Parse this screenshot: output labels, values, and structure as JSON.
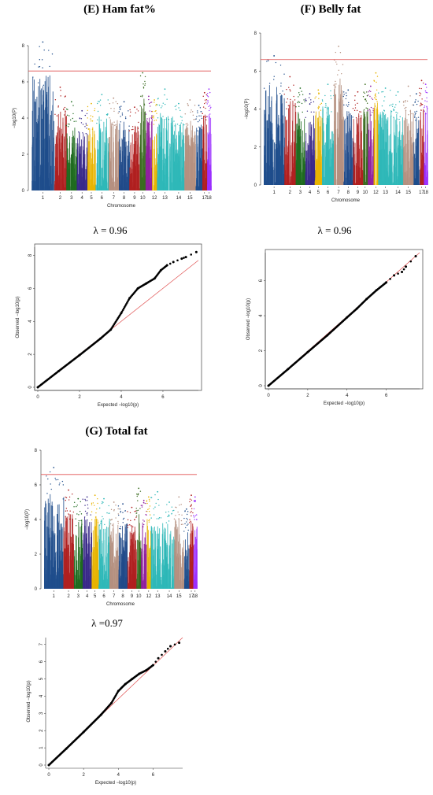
{
  "titles": {
    "E": "(E) Ham fat%",
    "F": "(F) Belly fat",
    "G": "(G) Total fat"
  },
  "lambdas": {
    "E": "λ = 0.96",
    "F": "λ = 0.96",
    "G": "λ =0.97"
  },
  "chart_data": [
    {
      "id": "E-manhattan",
      "type": "scatter",
      "subtype": "manhattan",
      "title": "(E) Ham fat%",
      "xlabel": "Chromosome",
      "ylabel": "−log10(P)",
      "ylim": [
        0,
        8
      ],
      "yticks": [
        0,
        2,
        4,
        6,
        8
      ],
      "chromosomes": [
        "1",
        "2",
        "3",
        "4",
        "5",
        "6",
        "7",
        "8",
        "9",
        "10",
        "11",
        "12",
        "13",
        "14",
        "15",
        "16",
        "17",
        "18"
      ],
      "xtick_labels": [
        "1",
        "2",
        "3",
        "4",
        "5",
        "6",
        "7",
        "8",
        "9",
        "10",
        "12",
        "13",
        "14",
        "15",
        "17",
        "18"
      ],
      "significance_threshold": 6.6,
      "chromosome_colors": [
        "#1f4e8c",
        "#b02020",
        "#1f6b1f",
        "#3a2a8a",
        "#e8b400",
        "#2fb8b8",
        "#b59080",
        "#204a8a",
        "#b02020",
        "#3a6b1f",
        "#9020a0",
        "#e8b400",
        "#2fb8b8",
        "#2fb8b8",
        "#b59080",
        "#1f4e8c",
        "#b02020",
        "#9b30ff"
      ],
      "peak_values": [
        8.2,
        5.7,
        4.9,
        4.4,
        4.8,
        5.3,
        5.1,
        4.9,
        4.6,
        6.5,
        5.2,
        5.0,
        5.6,
        4.8,
        5.0,
        4.7,
        5.4,
        5.6
      ],
      "grid": false
    },
    {
      "id": "F-manhattan",
      "type": "scatter",
      "subtype": "manhattan",
      "title": "(F) Belly fat",
      "xlabel": "Chromosome",
      "ylabel": "−log10(P)",
      "ylim": [
        0,
        8
      ],
      "yticks": [
        0,
        2,
        4,
        6,
        8
      ],
      "chromosomes": [
        "1",
        "2",
        "3",
        "4",
        "5",
        "6",
        "7",
        "8",
        "9",
        "10",
        "11",
        "12",
        "13",
        "14",
        "15",
        "16",
        "17",
        "18"
      ],
      "xtick_labels": [
        "1",
        "2",
        "3",
        "4",
        "5",
        "6",
        "7",
        "8",
        "9",
        "10",
        "12",
        "13",
        "14",
        "15",
        "17",
        "18"
      ],
      "significance_threshold": 6.6,
      "chromosome_colors": [
        "#1f4e8c",
        "#b02020",
        "#1f6b1f",
        "#3a2a8a",
        "#e8b400",
        "#2fb8b8",
        "#b59080",
        "#204a8a",
        "#b02020",
        "#3a6b1f",
        "#9020a0",
        "#e8b400",
        "#2fb8b8",
        "#2fb8b8",
        "#b59080",
        "#1f4e8c",
        "#b02020",
        "#9b30ff"
      ],
      "peak_values": [
        6.8,
        5.7,
        5.1,
        4.8,
        5.0,
        5.3,
        7.3,
        5.0,
        4.9,
        5.3,
        5.2,
        5.9,
        5.1,
        4.9,
        5.2,
        4.8,
        5.5,
        5.3
      ],
      "grid": false
    },
    {
      "id": "E-qq",
      "type": "scatter",
      "subtype": "qq",
      "xlabel": "Expected −log10(p)",
      "ylabel": "Observed −log10(p)",
      "xlim": [
        0,
        7.7
      ],
      "ylim": [
        0,
        8.5
      ],
      "xticks": [
        0,
        2,
        4,
        6
      ],
      "yticks": [
        0,
        2,
        4,
        6,
        8
      ],
      "lambda": 0.96,
      "points": [
        [
          0,
          0
        ],
        [
          1,
          0.98
        ],
        [
          2,
          1.95
        ],
        [
          3,
          2.95
        ],
        [
          3.5,
          3.5
        ],
        [
          4,
          4.5
        ],
        [
          4.4,
          5.4
        ],
        [
          4.8,
          6.0
        ],
        [
          5.2,
          6.3
        ],
        [
          5.6,
          6.6
        ],
        [
          5.9,
          7.1
        ],
        [
          6.2,
          7.4
        ],
        [
          6.5,
          7.6
        ],
        [
          6.9,
          7.8
        ],
        [
          7.1,
          7.9
        ],
        [
          7.6,
          8.2
        ]
      ],
      "grid": false
    },
    {
      "id": "F-qq",
      "type": "scatter",
      "subtype": "qq",
      "xlabel": "Expected −log10(p)",
      "ylabel": "Observed −log10(p)",
      "xlim": [
        0,
        7.7
      ],
      "ylim": [
        0,
        7.6
      ],
      "xticks": [
        0,
        2,
        4,
        6
      ],
      "yticks": [
        0,
        2,
        4,
        6
      ],
      "lambda": 0.96,
      "points": [
        [
          0,
          0
        ],
        [
          1,
          0.95
        ],
        [
          2,
          1.92
        ],
        [
          3,
          2.88
        ],
        [
          4,
          3.9
        ],
        [
          4.5,
          4.4
        ],
        [
          5,
          4.95
        ],
        [
          5.5,
          5.45
        ],
        [
          6,
          5.9
        ],
        [
          6.4,
          6.3
        ],
        [
          6.8,
          6.5
        ],
        [
          7.0,
          6.8
        ],
        [
          7.5,
          7.4
        ]
      ],
      "grid": false
    },
    {
      "id": "G-manhattan",
      "type": "scatter",
      "subtype": "manhattan",
      "title": "(G) Total fat",
      "xlabel": "Chromosome",
      "ylabel": "−log10(P)",
      "ylim": [
        0,
        8
      ],
      "yticks": [
        0,
        2,
        4,
        6,
        8
      ],
      "chromosomes": [
        "1",
        "2",
        "3",
        "4",
        "5",
        "6",
        "7",
        "8",
        "9",
        "10",
        "11",
        "12",
        "13",
        "14",
        "15",
        "16",
        "17",
        "18"
      ],
      "xtick_labels": [
        "1",
        "2",
        "3",
        "4",
        "5",
        "6",
        "7",
        "8",
        "9",
        "10",
        "12",
        "13",
        "14",
        "15",
        "17",
        "18"
      ],
      "significance_threshold": 6.6,
      "chromosome_colors": [
        "#1f4e8c",
        "#b02020",
        "#1f6b1f",
        "#3a2a8a",
        "#e8b400",
        "#2fb8b8",
        "#b59080",
        "#204a8a",
        "#b02020",
        "#3a6b1f",
        "#9020a0",
        "#e8b400",
        "#2fb8b8",
        "#2fb8b8",
        "#b59080",
        "#1f4e8c",
        "#b02020",
        "#9b30ff"
      ],
      "peak_values": [
        7.0,
        5.7,
        5.2,
        5.3,
        5.4,
        5.2,
        5.0,
        4.9,
        4.7,
        5.8,
        5.1,
        5.3,
        5.6,
        5.0,
        5.3,
        4.6,
        5.4,
        5.3
      ],
      "grid": false
    },
    {
      "id": "G-qq",
      "type": "scatter",
      "subtype": "qq",
      "xlabel": "Expected −log10(p)",
      "ylabel": "Observed −log10(p)",
      "xlim": [
        0,
        7.7
      ],
      "ylim": [
        0,
        7.4
      ],
      "xticks": [
        0,
        2,
        4,
        6
      ],
      "yticks": [
        0,
        1,
        2,
        3,
        4,
        5,
        6,
        7
      ],
      "lambda": 0.97,
      "points": [
        [
          0,
          0
        ],
        [
          1,
          0.95
        ],
        [
          2,
          1.92
        ],
        [
          3,
          2.92
        ],
        [
          3.6,
          3.6
        ],
        [
          4,
          4.3
        ],
        [
          4.4,
          4.7
        ],
        [
          4.8,
          5.0
        ],
        [
          5.2,
          5.3
        ],
        [
          5.6,
          5.5
        ],
        [
          6.0,
          5.8
        ],
        [
          6.3,
          6.2
        ],
        [
          6.7,
          6.6
        ],
        [
          7.0,
          6.9
        ],
        [
          7.5,
          7.1
        ]
      ],
      "grid": false
    }
  ]
}
